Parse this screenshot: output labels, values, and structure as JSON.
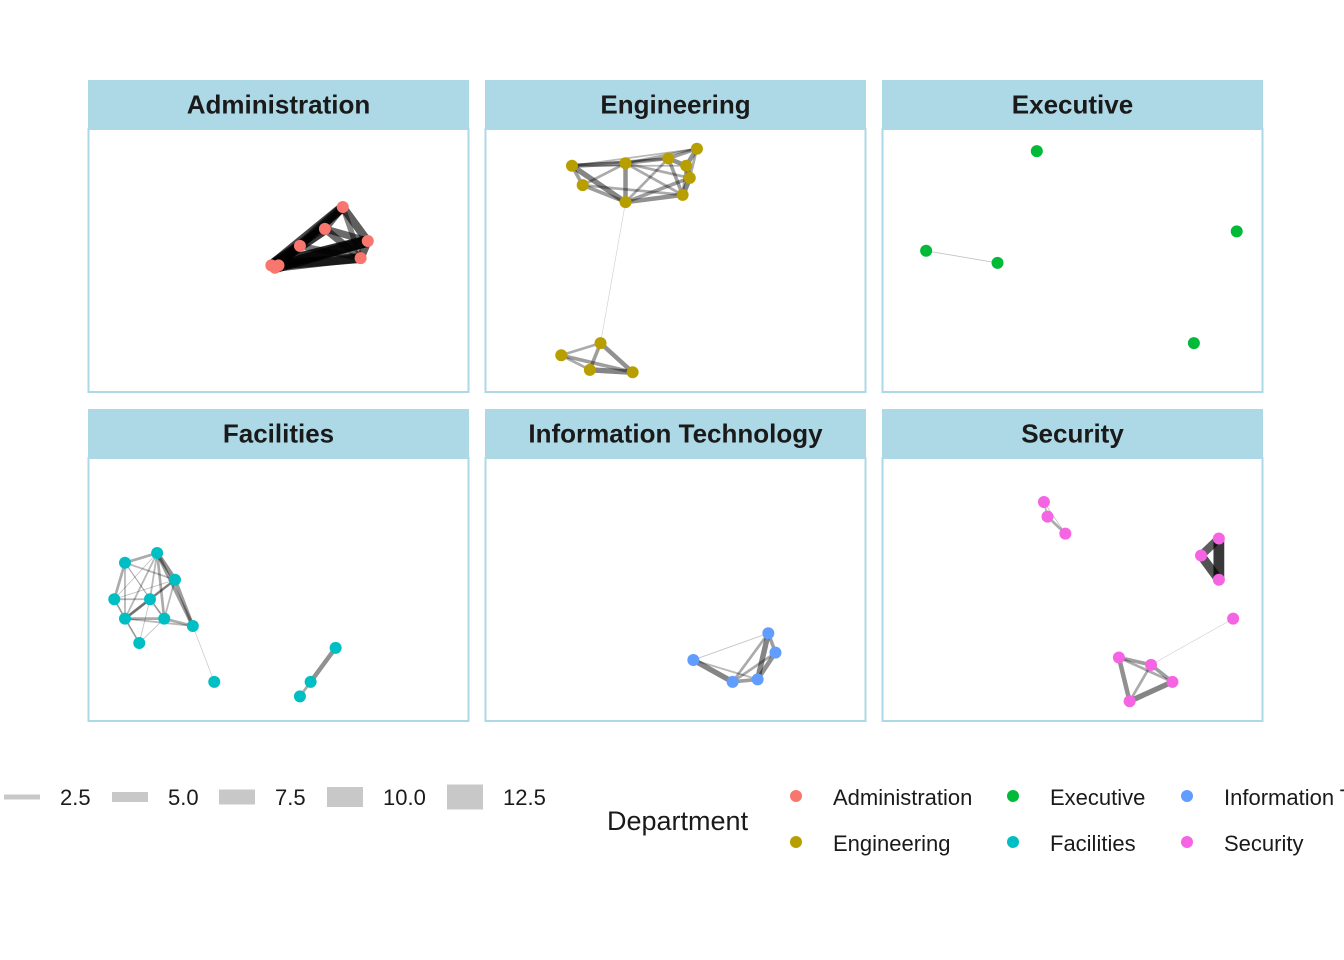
{
  "chart_data": {
    "type": "network-facets",
    "facet_variable": "Department",
    "colors": {
      "Administration": "#F8766D",
      "Engineering": "#B79F00",
      "Executive": "#00BA38",
      "Facilities": "#00BFC4",
      "Information Technology": "#619CFF",
      "Security": "#F564E3",
      "strip_fill": "#ADD8E6",
      "panel_border": "#ADD8E6",
      "edge": "#000000",
      "legend_line": "#c8c8c8"
    },
    "panels": [
      {
        "title": "Administration",
        "nodes": [
          [
            0.68,
            0.28
          ],
          [
            0.63,
            0.37
          ],
          [
            0.75,
            0.42
          ],
          [
            0.56,
            0.44
          ],
          [
            0.73,
            0.49
          ],
          [
            0.48,
            0.52
          ],
          [
            0.49,
            0.53
          ],
          [
            0.5,
            0.52
          ]
        ],
        "edges": [
          [
            0,
            1,
            8
          ],
          [
            0,
            2,
            9
          ],
          [
            0,
            3,
            7
          ],
          [
            0,
            5,
            11
          ],
          [
            0,
            6,
            10
          ],
          [
            1,
            2,
            8
          ],
          [
            1,
            3,
            6
          ],
          [
            1,
            4,
            8
          ],
          [
            1,
            5,
            12
          ],
          [
            2,
            4,
            9
          ],
          [
            2,
            5,
            13
          ],
          [
            2,
            6,
            12
          ],
          [
            3,
            4,
            7
          ],
          [
            3,
            5,
            9
          ],
          [
            4,
            5,
            11
          ],
          [
            4,
            6,
            9
          ],
          [
            5,
            6,
            5
          ],
          [
            6,
            7,
            5
          ],
          [
            0,
            4,
            6
          ],
          [
            3,
            6,
            6
          ]
        ]
      },
      {
        "title": "Engineering",
        "nodes": [
          [
            0.56,
            0.04
          ],
          [
            0.21,
            0.11
          ],
          [
            0.36,
            0.1
          ],
          [
            0.48,
            0.08
          ],
          [
            0.53,
            0.11
          ],
          [
            0.54,
            0.16
          ],
          [
            0.24,
            0.19
          ],
          [
            0.52,
            0.23
          ],
          [
            0.36,
            0.26
          ],
          [
            0.29,
            0.84
          ],
          [
            0.18,
            0.89
          ],
          [
            0.26,
            0.95
          ],
          [
            0.38,
            0.96
          ]
        ],
        "edges": [
          [
            0,
            1,
            2
          ],
          [
            0,
            2,
            3
          ],
          [
            0,
            3,
            4
          ],
          [
            0,
            4,
            5
          ],
          [
            0,
            5,
            3
          ],
          [
            1,
            2,
            5
          ],
          [
            1,
            3,
            3
          ],
          [
            1,
            4,
            2
          ],
          [
            1,
            6,
            4
          ],
          [
            1,
            8,
            6
          ],
          [
            2,
            3,
            4
          ],
          [
            2,
            5,
            3
          ],
          [
            2,
            6,
            3
          ],
          [
            2,
            8,
            5
          ],
          [
            3,
            4,
            5
          ],
          [
            3,
            7,
            4
          ],
          [
            3,
            8,
            3
          ],
          [
            4,
            5,
            6
          ],
          [
            4,
            7,
            3
          ],
          [
            5,
            7,
            6
          ],
          [
            5,
            8,
            4
          ],
          [
            6,
            7,
            3
          ],
          [
            6,
            8,
            4
          ],
          [
            7,
            8,
            5
          ],
          [
            2,
            7,
            3
          ],
          [
            8,
            9,
            0.4
          ],
          [
            9,
            10,
            3
          ],
          [
            9,
            11,
            4
          ],
          [
            9,
            12,
            5
          ],
          [
            10,
            11,
            3
          ],
          [
            10,
            12,
            4
          ],
          [
            11,
            12,
            6
          ]
        ]
      },
      {
        "title": "Executive",
        "nodes": [
          [
            0.4,
            0.05
          ],
          [
            0.96,
            0.38
          ],
          [
            0.09,
            0.46
          ],
          [
            0.29,
            0.51
          ],
          [
            0.84,
            0.84
          ]
        ],
        "edges": [
          [
            2,
            3,
            1
          ]
        ]
      },
      {
        "title": "Facilities",
        "nodes": [
          [
            0.16,
            0.35
          ],
          [
            0.07,
            0.39
          ],
          [
            0.21,
            0.46
          ],
          [
            0.04,
            0.54
          ],
          [
            0.14,
            0.54
          ],
          [
            0.07,
            0.62
          ],
          [
            0.18,
            0.62
          ],
          [
            0.26,
            0.65
          ],
          [
            0.11,
            0.72
          ],
          [
            0.32,
            0.88
          ],
          [
            0.66,
            0.74
          ],
          [
            0.59,
            0.88
          ],
          [
            0.56,
            0.94
          ]
        ],
        "edges": [
          [
            0,
            1,
            3
          ],
          [
            0,
            2,
            5
          ],
          [
            0,
            3,
            1
          ],
          [
            0,
            4,
            2
          ],
          [
            0,
            5,
            2
          ],
          [
            0,
            6,
            3
          ],
          [
            0,
            7,
            4
          ],
          [
            1,
            2,
            2
          ],
          [
            1,
            3,
            3
          ],
          [
            1,
            4,
            1
          ],
          [
            1,
            5,
            2
          ],
          [
            1,
            6,
            1
          ],
          [
            2,
            3,
            1
          ],
          [
            2,
            4,
            2
          ],
          [
            2,
            5,
            3
          ],
          [
            2,
            6,
            2
          ],
          [
            2,
            7,
            4
          ],
          [
            3,
            4,
            2
          ],
          [
            3,
            5,
            2
          ],
          [
            3,
            8,
            1
          ],
          [
            4,
            5,
            3
          ],
          [
            4,
            6,
            2
          ],
          [
            4,
            8,
            1
          ],
          [
            5,
            6,
            3
          ],
          [
            5,
            8,
            2
          ],
          [
            5,
            7,
            2
          ],
          [
            6,
            7,
            3
          ],
          [
            6,
            8,
            1
          ],
          [
            7,
            9,
            0.8
          ],
          [
            10,
            11,
            5
          ],
          [
            11,
            12,
            3
          ]
        ]
      },
      {
        "title": "Information Technology",
        "nodes": [
          [
            0.76,
            0.68
          ],
          [
            0.78,
            0.76
          ],
          [
            0.55,
            0.79
          ],
          [
            0.73,
            0.87
          ],
          [
            0.66,
            0.88
          ]
        ],
        "edges": [
          [
            0,
            1,
            4
          ],
          [
            0,
            2,
            1
          ],
          [
            0,
            3,
            6
          ],
          [
            0,
            4,
            3
          ],
          [
            1,
            3,
            5
          ],
          [
            1,
            4,
            3
          ],
          [
            2,
            3,
            2
          ],
          [
            2,
            4,
            6
          ],
          [
            3,
            4,
            4
          ]
        ]
      },
      {
        "title": "Security",
        "nodes": [
          [
            0.42,
            0.14
          ],
          [
            0.43,
            0.2
          ],
          [
            0.48,
            0.27
          ],
          [
            0.91,
            0.29
          ],
          [
            0.86,
            0.36
          ],
          [
            0.91,
            0.46
          ],
          [
            0.95,
            0.62
          ],
          [
            0.63,
            0.78
          ],
          [
            0.72,
            0.81
          ],
          [
            0.78,
            0.88
          ],
          [
            0.66,
            0.96
          ]
        ],
        "edges": [
          [
            0,
            1,
            2
          ],
          [
            1,
            2,
            3
          ],
          [
            0,
            2,
            1
          ],
          [
            3,
            4,
            9
          ],
          [
            3,
            5,
            12
          ],
          [
            4,
            5,
            10
          ],
          [
            6,
            8,
            0.5
          ],
          [
            7,
            8,
            4
          ],
          [
            7,
            9,
            3
          ],
          [
            7,
            10,
            5
          ],
          [
            8,
            9,
            4
          ],
          [
            8,
            10,
            3
          ],
          [
            9,
            10,
            6
          ]
        ]
      }
    ],
    "legends": {
      "edge_width": {
        "title": "",
        "items": [
          {
            "label": "2.5",
            "value": 2.5
          },
          {
            "label": "5.0",
            "value": 5.0
          },
          {
            "label": "7.5",
            "value": 7.5
          },
          {
            "label": "10.0",
            "value": 10.0
          },
          {
            "label": "12.5",
            "value": 12.5
          }
        ]
      },
      "department": {
        "title": "Department",
        "items": [
          {
            "label": "Administration",
            "key": "Administration"
          },
          {
            "label": "Engineering",
            "key": "Engineering"
          },
          {
            "label": "Executive",
            "key": "Executive"
          },
          {
            "label": "Facilities",
            "key": "Facilities"
          },
          {
            "label": "Information Technology",
            "key": "Information Technology"
          },
          {
            "label": "Security",
            "key": "Security"
          }
        ]
      }
    }
  }
}
